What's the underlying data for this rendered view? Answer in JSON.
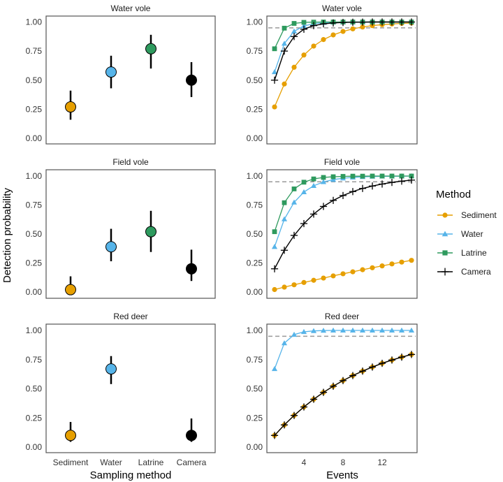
{
  "chart_data": {
    "type": "scatter",
    "description": "Two-column faceted figure: left column shows per-event detection probability estimates with 95% CI per sampling method; right column shows cumulative detection probability vs number of sampling events per method, with dashed reference at 0.95.",
    "methods": [
      "Sediment",
      "Water",
      "Latrine",
      "Camera"
    ],
    "colors": {
      "Sediment": "#E69F00",
      "Water": "#56B4E9",
      "Latrine": "#2E9A5E",
      "Camera": "#000000"
    },
    "markers": {
      "Sediment": "circle",
      "Water": "triangle",
      "Latrine": "square",
      "Camera": "plus"
    },
    "left": {
      "type": "pointrange",
      "xlabel": "Sampling method",
      "ylabel": "Detection probability",
      "ylim": [
        0,
        1
      ],
      "yticks": [
        "0.00",
        "0.25",
        "0.50",
        "0.75",
        "1.00"
      ],
      "xticks": [
        "Sediment",
        "Water",
        "Latrine",
        "Camera"
      ],
      "panels": [
        {
          "title": "Water vole",
          "points": [
            {
              "method": "Sediment",
              "estimate": 0.27,
              "lower": 0.16,
              "upper": 0.41
            },
            {
              "method": "Water",
              "estimate": 0.57,
              "lower": 0.43,
              "upper": 0.71
            },
            {
              "method": "Latrine",
              "estimate": 0.77,
              "lower": 0.6,
              "upper": 0.89
            },
            {
              "method": "Camera",
              "estimate": 0.5,
              "lower": 0.355,
              "upper": 0.655
            }
          ]
        },
        {
          "title": "Field vole",
          "points": [
            {
              "method": "Sediment",
              "estimate": 0.02,
              "lower": 0.0,
              "upper": 0.135
            },
            {
              "method": "Water",
              "estimate": 0.39,
              "lower": 0.265,
              "upper": 0.545
            },
            {
              "method": "Latrine",
              "estimate": 0.52,
              "lower": 0.345,
              "upper": 0.7
            },
            {
              "method": "Camera",
              "estimate": 0.2,
              "lower": 0.095,
              "upper": 0.365
            }
          ]
        },
        {
          "title": "Red deer",
          "points": [
            {
              "method": "Sediment",
              "estimate": 0.1,
              "lower": 0.045,
              "upper": 0.215
            },
            {
              "method": "Water",
              "estimate": 0.67,
              "lower": 0.54,
              "upper": 0.78
            },
            {
              "method": "Camera",
              "estimate": 0.1,
              "lower": 0.045,
              "upper": 0.245
            }
          ]
        }
      ]
    },
    "right": {
      "type": "line",
      "xlabel": "Events",
      "ylim": [
        0,
        1
      ],
      "xlim": [
        1,
        15
      ],
      "xticks": [
        4,
        8,
        12
      ],
      "yticks": [
        "0.00",
        "0.25",
        "0.50",
        "0.75",
        "1.00"
      ],
      "reference_line": 0.95,
      "x": [
        1,
        2,
        3,
        4,
        5,
        6,
        7,
        8,
        9,
        10,
        11,
        12,
        13,
        14,
        15
      ],
      "panels": [
        {
          "title": "Water vole",
          "series": [
            {
              "name": "Sediment",
              "values": [
                0.27,
                0.467,
                0.611,
                0.716,
                0.793,
                0.849,
                0.889,
                0.919,
                0.941,
                0.957,
                0.969,
                0.977,
                0.983,
                0.988,
                0.991
              ]
            },
            {
              "name": "Water",
              "values": [
                0.57,
                0.815,
                0.92,
                0.966,
                0.985,
                0.994,
                0.997,
                0.999,
                1.0,
                1.0,
                1.0,
                1.0,
                1.0,
                1.0,
                1.0
              ]
            },
            {
              "name": "Latrine",
              "values": [
                0.77,
                0.947,
                0.988,
                0.997,
                0.999,
                1.0,
                1.0,
                1.0,
                1.0,
                1.0,
                1.0,
                1.0,
                1.0,
                1.0,
                1.0
              ]
            },
            {
              "name": "Camera",
              "values": [
                0.5,
                0.75,
                0.875,
                0.938,
                0.969,
                0.984,
                0.992,
                0.996,
                0.998,
                0.999,
                1.0,
                1.0,
                1.0,
                1.0,
                1.0
              ]
            }
          ]
        },
        {
          "title": "Field vole",
          "series": [
            {
              "name": "Sediment",
              "values": [
                0.021,
                0.042,
                0.062,
                0.082,
                0.101,
                0.12,
                0.139,
                0.157,
                0.174,
                0.192,
                0.209,
                0.225,
                0.242,
                0.258,
                0.273
              ]
            },
            {
              "name": "Water",
              "values": [
                0.39,
                0.628,
                0.773,
                0.862,
                0.916,
                0.949,
                0.969,
                0.981,
                0.988,
                0.993,
                0.996,
                0.997,
                0.998,
                0.999,
                1.0
              ]
            },
            {
              "name": "Latrine",
              "values": [
                0.52,
                0.77,
                0.889,
                0.947,
                0.975,
                0.988,
                0.994,
                0.997,
                0.999,
                0.999,
                1.0,
                1.0,
                1.0,
                1.0,
                1.0
              ]
            },
            {
              "name": "Camera",
              "values": [
                0.2,
                0.36,
                0.488,
                0.59,
                0.672,
                0.738,
                0.79,
                0.832,
                0.866,
                0.893,
                0.914,
                0.931,
                0.945,
                0.956,
                0.965
              ]
            }
          ]
        },
        {
          "title": "Red deer",
          "series": [
            {
              "name": "Sediment",
              "values": [
                0.1,
                0.19,
                0.271,
                0.344,
                0.41,
                0.469,
                0.522,
                0.57,
                0.613,
                0.651,
                0.686,
                0.718,
                0.746,
                0.771,
                0.794
              ]
            },
            {
              "name": "Water",
              "values": [
                0.67,
                0.891,
                0.964,
                0.988,
                0.996,
                0.999,
                1.0,
                1.0,
                1.0,
                1.0,
                1.0,
                1.0,
                1.0,
                1.0,
                1.0
              ]
            },
            {
              "name": "Camera",
              "values": [
                0.1,
                0.19,
                0.271,
                0.344,
                0.41,
                0.469,
                0.522,
                0.57,
                0.613,
                0.651,
                0.686,
                0.718,
                0.746,
                0.771,
                0.794
              ]
            }
          ]
        }
      ]
    },
    "legend": {
      "title": "Method",
      "position": "right",
      "entries": [
        "Sediment",
        "Water",
        "Latrine",
        "Camera"
      ]
    }
  }
}
